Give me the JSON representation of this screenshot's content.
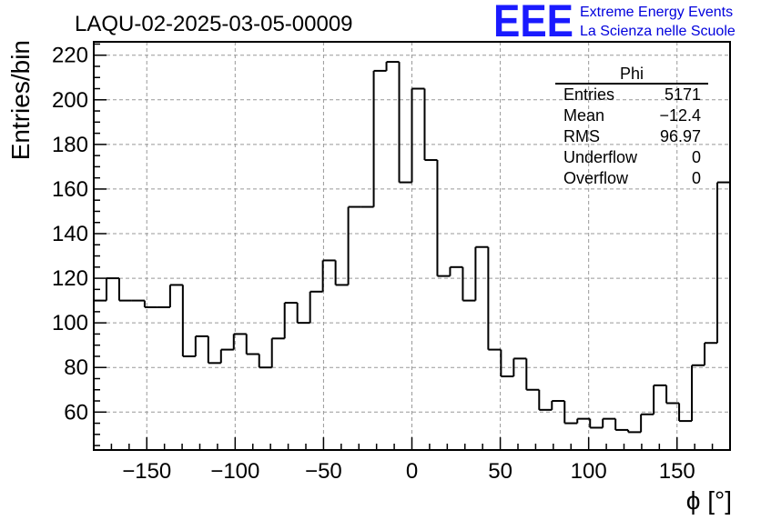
{
  "chart_data": {
    "type": "histogram",
    "title": "LAQU-02-2025-03-05-00009",
    "xlabel": "ϕ [°]",
    "ylabel": "Entries/bin",
    "xlim": [
      -180,
      180
    ],
    "ylim": [
      43,
      226
    ],
    "grid": true,
    "bin_width": 7.2,
    "bin_edges_start": -180,
    "values": [
      110,
      120,
      110,
      110,
      107,
      107,
      117,
      85,
      94,
      82,
      88,
      95,
      86,
      80,
      93,
      109,
      100,
      114,
      128,
      117,
      152,
      152,
      213,
      217,
      163,
      205,
      173,
      121,
      125,
      110,
      134,
      88,
      76,
      84,
      70,
      61,
      65,
      55,
      57,
      53,
      57,
      52,
      51,
      59,
      72,
      64,
      56,
      81,
      91,
      163
    ],
    "xticks": [
      -150,
      -100,
      -50,
      0,
      50,
      100,
      150
    ],
    "xtick_labels": [
      "−150",
      "−100",
      "−50",
      "0",
      "50",
      "100",
      "150"
    ],
    "yticks": [
      60,
      80,
      100,
      120,
      140,
      160,
      180,
      200,
      220
    ],
    "ytick_labels": [
      "60",
      "80",
      "100",
      "120",
      "140",
      "160",
      "180",
      "200",
      "220"
    ],
    "stats_box": {
      "title": "Phi",
      "rows": [
        {
          "label": "Entries",
          "value": "5171"
        },
        {
          "label": "Mean",
          "value": "−12.4"
        },
        {
          "label": "RMS",
          "value": "96.97"
        },
        {
          "label": "Underflow",
          "value": "0"
        },
        {
          "label": "Overflow",
          "value": "0"
        }
      ]
    }
  },
  "logo": {
    "mark": "EEE",
    "line1": "Extreme Energy Events",
    "line2": "La Scienza nelle Scuole",
    "color": "#1a1aff"
  }
}
